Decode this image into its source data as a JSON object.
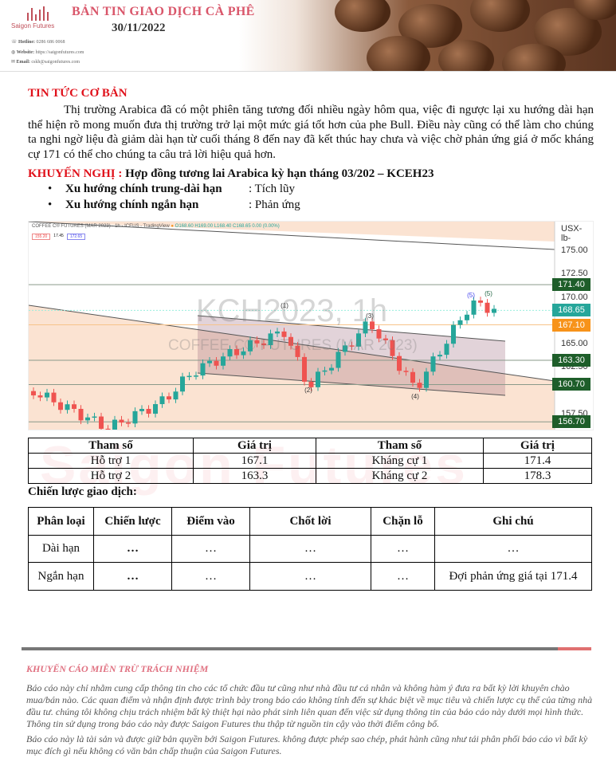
{
  "header": {
    "title": "BẢN TIN GIAO DỊCH CÀ PHÊ",
    "date": "30/11/2022",
    "logo": "Saigon Futures",
    "hotline_label": "Hotline:",
    "hotline": "0286 686 0068",
    "website_label": "Website:",
    "website": "https://saigonfutures.com",
    "email_label": "Email:",
    "email": "cskh@saigonfutures.com"
  },
  "news": {
    "title": "TIN TỨC CƠ BẢN",
    "body": "Thị trường Arabica đã có một phiên tăng tương đối nhiều ngày hôm qua, việc đi ngược lại xu hướng dài hạn thể hiện rõ mong muốn đưa thị trường trở lại một mức giá tốt hơn của phe Bull. Điều này cũng có thể làm cho chúng ta nghi ngờ liệu đà giảm dài hạn từ cuối tháng 8 đến nay đã kết thúc hay chưa và việc chờ phản ứng giá ở mốc kháng cự 171 có thể cho chúng ta câu trả lời hiệu quả hơn."
  },
  "recommendation": {
    "label": "KHUYẾN NGHỊ :",
    "text": "Hợp đồng tương lai Arabica kỳ hạn tháng 03/202 – KCEH23",
    "bullets": [
      {
        "label": "Xu hướng chính trung-dài hạn",
        "value": ": Tích lũy"
      },
      {
        "label": "Xu hướng chính ngắn hạn",
        "value": ": Phản ứng"
      }
    ]
  },
  "chart": {
    "title": "COFFEE C® FUTURES (MAR 2023) - 1h - ICEUS - TradingView",
    "ohlc": "O168.60 H169.00 L168.40 C168.65 0.00 (0.00%)",
    "chips": [
      "155.20",
      "17.45",
      "172.65"
    ],
    "watermark": "KCH2023, 1h",
    "watermark_sub": "COFFEE C® FUTURES (MAR 2023)",
    "unit": "USX-lb-",
    "axis_ticks": [
      "175.00",
      "172.50",
      "170.00",
      "165.00",
      "162.50",
      "157.50"
    ],
    "price_labels": [
      {
        "value": "171.40",
        "color": "#1e5e2a"
      },
      {
        "value": "168.65",
        "color": "#26a69a"
      },
      {
        "value": "167.10",
        "color": "#f7931a"
      },
      {
        "value": "163.30",
        "color": "#1e5e2a"
      },
      {
        "value": "160.70",
        "color": "#1e5e2a"
      },
      {
        "value": "156.70",
        "color": "#1e5e2a"
      }
    ],
    "wave_labels": [
      "(1)",
      "(2)",
      "(3)",
      "(4)",
      "(5)",
      "(5)"
    ]
  },
  "levels": {
    "headers": [
      "Tham số",
      "Giá trị",
      "Tham số",
      "Giá trị"
    ],
    "rows": [
      [
        "Hỗ trợ 1",
        "167.1",
        "Kháng cự 1",
        "171.4"
      ],
      [
        "Hỗ trợ 2",
        "163.3",
        "Kháng cự 2",
        "178.3"
      ]
    ]
  },
  "strategy": {
    "title": "Chiến lược giao dịch:",
    "headers": [
      "Phân loại",
      "Chiến lược",
      "Điểm vào",
      "Chốt lời",
      "Chặn lỗ",
      "Ghi chú"
    ],
    "rows": [
      [
        "Dài hạn",
        "…",
        "…",
        "…",
        "…",
        "…"
      ],
      [
        "Ngắn hạn",
        "…",
        "…",
        "…",
        "…",
        "Đợi phản ứng giá tại 171.4"
      ]
    ]
  },
  "watermark": "Saigon Futures",
  "disclaimer": {
    "title": "KHUYẾN CÁO MIỄN TRỪ TRÁCH NHIỆM",
    "p1": "Báo cáo này chỉ nhằm cung cấp thông tin cho các tổ chức đầu tư cũng như nhà đầu tư cá nhân và không hàm ý đưa ra bất kỳ lời khuyên chào mua/bán nào. Các quan điểm và nhận định được trình bày trong báo cáo không tính đến sự khác biệt về mục tiêu và chiến lược cụ thể của từng nhà đầu tư. chúng tôi không chịu trách nhiệm bất kỳ thiệt hại nào phát sinh liên quan đến việc sử dụng thông tin của báo cáo này dưới mọi hình thức. Thông tin sử dụng trong báo cáo này được Saigon Futures thu thập từ nguồn tin cậy vào thời điểm công bố.",
    "p2": "Báo cáo này là tài sản và được giữ bản quyền bởi Saigon Futures. không được phép sao chép, phát hành cũng như tái phân phối báo cáo vì bất kỳ mục đích gì nếu không có văn bản chấp thuận của Saigon Futures."
  }
}
